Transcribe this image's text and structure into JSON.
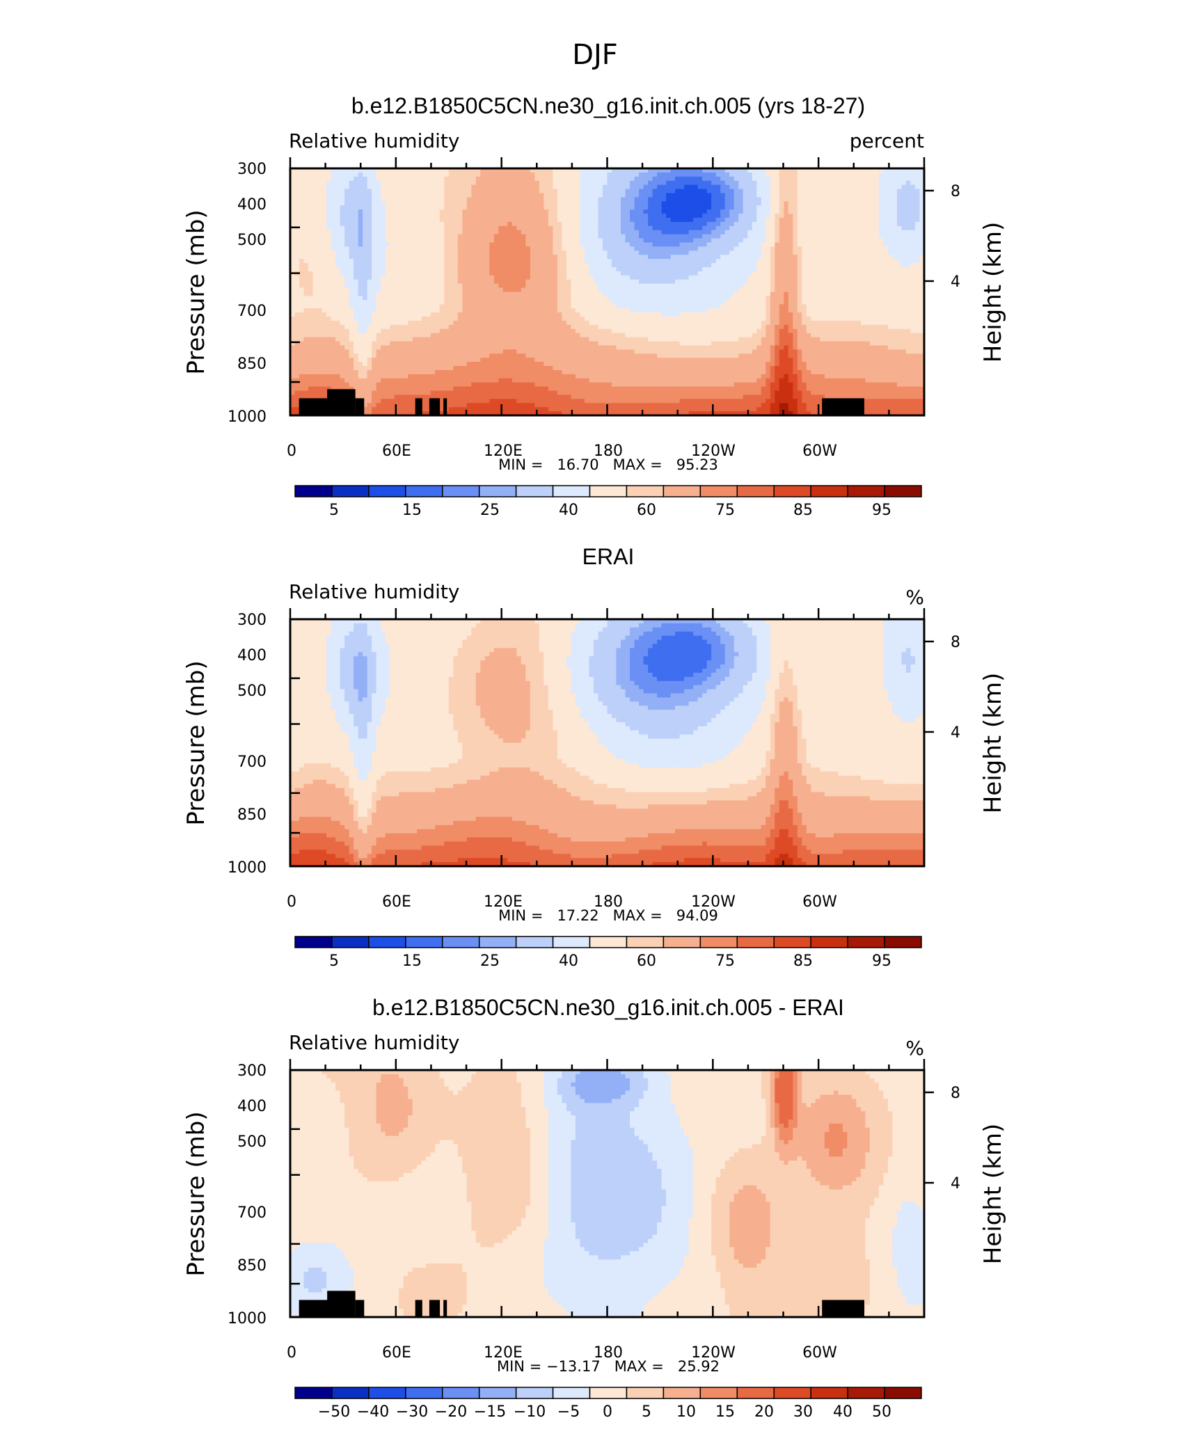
{
  "figure_title": "DJF",
  "chart_data": [
    {
      "type": "heatmap",
      "title": "b.e12.B1850C5CN.ne30_g16.init.ch.005 (yrs 18-27)",
      "left_label": "Relative humidity",
      "right_label": "percent",
      "ylabel": "Pressure (mb)",
      "ylabel_right": "Height (km)",
      "x_ticks": [
        "0",
        "60E",
        "120E",
        "180",
        "120W",
        "60W"
      ],
      "y_ticks": [
        "300",
        "400",
        "500",
        "700",
        "850",
        "1000"
      ],
      "y_right_ticks": [
        "8",
        "4"
      ],
      "ylim": [
        1000,
        300
      ],
      "stats": "MIN =   16.70   MAX =   95.23",
      "colorbar_labels": [
        "5",
        "15",
        "25",
        "40",
        "60",
        "75",
        "85",
        "95"
      ],
      "colorbar_levels": [
        5,
        10,
        15,
        20,
        25,
        30,
        40,
        50,
        60,
        65,
        75,
        80,
        85,
        90,
        95
      ],
      "min": 16.7,
      "max": 95.23
    },
    {
      "type": "heatmap",
      "title": "ERAI",
      "left_label": "Relative humidity",
      "right_label": "%",
      "ylabel": "Pressure (mb)",
      "ylabel_right": "Height (km)",
      "x_ticks": [
        "0",
        "60E",
        "120E",
        "180",
        "120W",
        "60W"
      ],
      "y_ticks": [
        "300",
        "400",
        "500",
        "700",
        "850",
        "1000"
      ],
      "y_right_ticks": [
        "8",
        "4"
      ],
      "ylim": [
        1000,
        300
      ],
      "stats": "MIN =   17.22   MAX =   94.09",
      "colorbar_labels": [
        "5",
        "15",
        "25",
        "40",
        "60",
        "75",
        "85",
        "95"
      ],
      "colorbar_levels": [
        5,
        10,
        15,
        20,
        25,
        30,
        40,
        50,
        60,
        65,
        75,
        80,
        85,
        90,
        95
      ],
      "min": 17.22,
      "max": 94.09
    },
    {
      "type": "heatmap",
      "title": "b.e12.B1850C5CN.ne30_g16.init.ch.005 - ERAI",
      "left_label": "Relative humidity",
      "right_label": "%",
      "ylabel": "Pressure (mb)",
      "ylabel_right": "Height (km)",
      "x_ticks": [
        "0",
        "60E",
        "120E",
        "180",
        "120W",
        "60W"
      ],
      "y_ticks": [
        "300",
        "400",
        "500",
        "700",
        "850",
        "1000"
      ],
      "y_right_ticks": [
        "8",
        "4"
      ],
      "ylim": [
        1000,
        300
      ],
      "stats": "MIN = −13.17   MAX =   25.92",
      "colorbar_labels": [
        "−50",
        "−40",
        "−30",
        "−20",
        "−15",
        "−10",
        "−5",
        "0",
        "5",
        "10",
        "15",
        "20",
        "30",
        "40",
        "50"
      ],
      "colorbar_levels": [
        -50,
        -40,
        -30,
        -20,
        -15,
        -10,
        -5,
        0,
        5,
        10,
        15,
        20,
        30,
        40,
        50
      ],
      "min": -13.17,
      "max": 25.92
    }
  ],
  "palette": [
    "#00008c",
    "#0a2fc4",
    "#1d4fe8",
    "#3f6ff0",
    "#6a90f5",
    "#93b0f7",
    "#bcd0fa",
    "#dde9fc",
    "#fde8d6",
    "#fbd1b5",
    "#f6b090",
    "#f08c66",
    "#e86a45",
    "#de4a25",
    "#c9300f",
    "#a81a05",
    "#8a0c00"
  ]
}
